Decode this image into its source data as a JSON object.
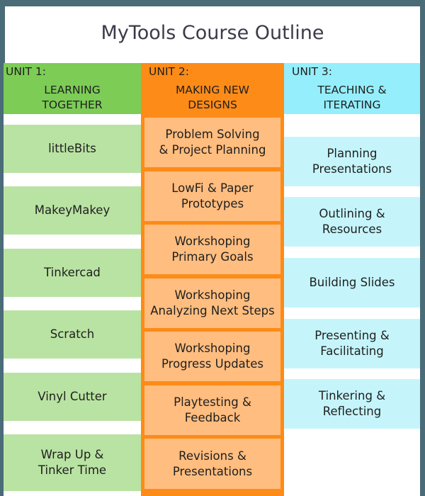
{
  "title": "MyTools Course Outline",
  "units": [
    {
      "label": "UNIT 1:",
      "name": "LEARNING\nTOGETHER",
      "items": [
        "littleBits",
        "MakeyMakey",
        "Tinkercad",
        "Scratch",
        "Vinyl Cutter",
        "Wrap Up &\nTinker Time"
      ]
    },
    {
      "label": "UNIT 2:",
      "name": "MAKING NEW\nDESIGNS",
      "items": [
        "Problem Solving\n& Project Planning",
        "LowFi & Paper\nPrototypes",
        "Workshoping\nPrimary Goals",
        "Workshoping\nAnalyzing Next Steps",
        "Workshoping\nProgress Updates",
        "Playtesting &\nFeedback",
        "Revisions &\nPresentations"
      ]
    },
    {
      "label": "UNIT 3:",
      "name": "TEACHING &\nITERATING",
      "items": [
        "Planning\nPresentations",
        "Outlining &\nResources",
        "Building Slides",
        "Presenting &\nFacilitating",
        "Tinkering &\nReflecting"
      ]
    }
  ],
  "colors": {
    "unit1_header": "#7ccc56",
    "unit1_cell": "#b9e3a2",
    "unit2_header": "#fd8b17",
    "unit2_cell": "#ffbd7f",
    "unit3_header": "#95eefb",
    "unit3_cell": "#c5f5fb"
  }
}
